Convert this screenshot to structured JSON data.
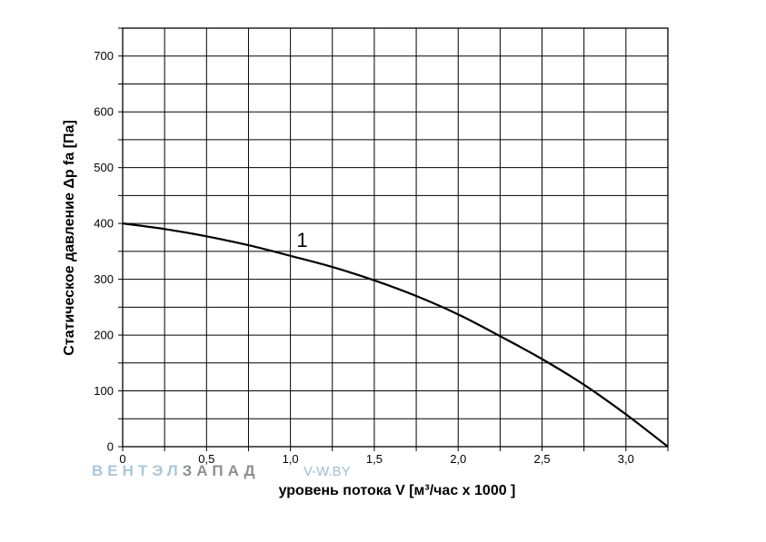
{
  "chart_data": {
    "type": "line",
    "xlabel": "уровень потока  V [м³/час x 1000 ]",
    "ylabel": "Статическое давление  Δp fa [Па]",
    "xlim": [
      0,
      3.25
    ],
    "ylim": [
      0,
      750
    ],
    "x_ticks": [
      0,
      0.5,
      1.0,
      1.5,
      2.0,
      2.5,
      3.0
    ],
    "x_tick_labels": [
      "0",
      "0,5",
      "1,0",
      "1,5",
      "2,0",
      "2,5",
      "3,0"
    ],
    "y_ticks": [
      0,
      100,
      200,
      300,
      400,
      500,
      600,
      700
    ],
    "y_tick_labels": [
      "0",
      "100",
      "200",
      "300",
      "400",
      "500",
      "600",
      "700"
    ],
    "x_grid_step": 0.25,
    "y_grid_step": 50,
    "grid": true,
    "series": [
      {
        "name": "1",
        "color": "#000000",
        "x": [
          0,
          0.25,
          0.5,
          0.75,
          1.0,
          1.25,
          1.5,
          1.75,
          2.0,
          2.25,
          2.5,
          2.75,
          3.0,
          3.25
        ],
        "y": [
          400,
          390,
          377,
          361,
          342,
          322,
          298,
          270,
          237,
          198,
          157,
          111,
          58,
          0
        ]
      }
    ]
  },
  "watermark": {
    "brand_part1": "ВЕНТЭЛ",
    "brand_part2": "ЗАПАД",
    "site": "V-W.BY",
    "color_light": "#a9c8dd",
    "color_dark": "#8f8f8f",
    "color_site": "#9cbfd6"
  }
}
